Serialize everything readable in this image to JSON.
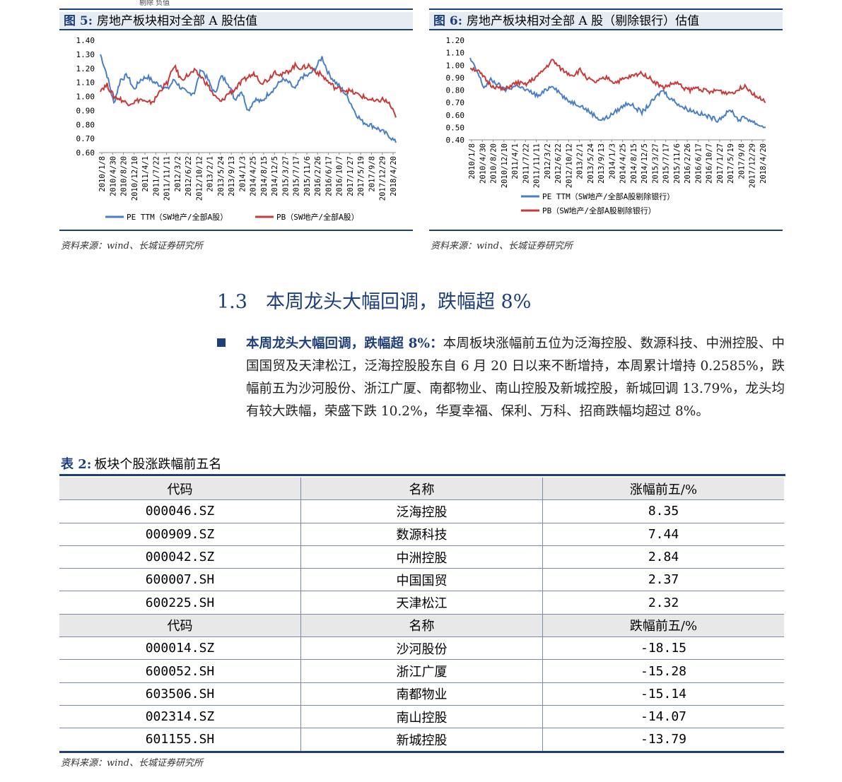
{
  "top_cut_text": "剔除 负值",
  "figures": [
    {
      "label": "图 5:",
      "title": "房地产板块相对全部 A 股估值",
      "source": "资料来源：wind、长城证券研究所",
      "chart_data": {
        "type": "line",
        "ylim": [
          0.6,
          1.4
        ],
        "yticks": [
          "1.40",
          "1.30",
          "1.20",
          "1.10",
          "1.00",
          "0.90",
          "0.80",
          "0.70",
          "0.60"
        ],
        "x_ticks": [
          "2010/1/8",
          "2010/4/30",
          "2010/8/20",
          "2010/12/10",
          "2011/4/1",
          "2011/7/22",
          "2011/11/11",
          "2012/3/2",
          "2012/6/22",
          "2012/10/12",
          "2013/2/1",
          "2013/5/24",
          "2013/9/13",
          "2014/1/3",
          "2014/4/25",
          "2014/8/15",
          "2014/12/5",
          "2015/3/27",
          "2015/7/17",
          "2015/11/6",
          "2016/2/26",
          "2016/6/17",
          "2016/10/7",
          "2017/1/27",
          "2017/5/19",
          "2017/9/8",
          "2017/12/29",
          "2018/4/20"
        ],
        "series": [
          {
            "name": "PE TTM（SW地产/全部A股）",
            "color": "#4a7fc8",
            "values": [
              1.3,
              1.15,
              0.95,
              1.12,
              1.15,
              1.05,
              1.12,
              1.14,
              1.1,
              1.08,
              1.05,
              1.12,
              1.06,
              1.02,
              1.03,
              1.2,
              1.12,
              1.02,
              1.14,
              1.1,
              0.98,
              1.04,
              0.9,
              0.98,
              0.96,
              1.02,
              1.06,
              1.12,
              1.1,
              1.05,
              1.14,
              1.15,
              1.2,
              1.28,
              1.16,
              1.1,
              1.05,
              0.98,
              0.88,
              0.82,
              0.8,
              0.78,
              0.75,
              0.72,
              0.67
            ]
          },
          {
            "name": "PB（SW地产/全部A股）",
            "color": "#c83a3a",
            "values": [
              1.05,
              1.08,
              1.0,
              0.98,
              0.95,
              0.96,
              0.98,
              0.95,
              0.97,
              1.05,
              1.1,
              1.22,
              1.12,
              1.15,
              1.18,
              1.14,
              1.08,
              1.0,
              0.96,
              1.02,
              1.05,
              1.1,
              1.14,
              1.16,
              1.1,
              1.12,
              1.18,
              1.15,
              1.18,
              1.22,
              1.2,
              1.22,
              1.18,
              1.15,
              1.1,
              1.06,
              1.05,
              1.04,
              1.02,
              1.0,
              0.98,
              0.96,
              0.98,
              0.95,
              0.85
            ]
          }
        ]
      }
    },
    {
      "label": "图 6:",
      "title": "房地产板块相对全部 A 股（剔除银行）估值",
      "source": "资料来源：wind、长城证券研究所",
      "chart_data": {
        "type": "line",
        "ylim": [
          0.4,
          1.2
        ],
        "yticks": [
          "1.20",
          "1.10",
          "1.00",
          "0.90",
          "0.80",
          "0.70",
          "0.60",
          "0.50",
          "0.40"
        ],
        "x_ticks": [
          "2010/1/8",
          "2010/4/30",
          "2010/8/20",
          "2010/12/10",
          "2011/4/1",
          "2011/7/22",
          "2011/11/11",
          "2012/3/2",
          "2012/6/22",
          "2012/10/12",
          "2013/2/1",
          "2013/5/24",
          "2013/9/13",
          "2014/1/3",
          "2014/4/25",
          "2014/8/15",
          "2014/12/5",
          "2015/3/27",
          "2015/7/17",
          "2015/11/6",
          "2016/2/26",
          "2016/6/17",
          "2016/10/7",
          "2017/1/27",
          "2017/5/19",
          "2017/9/8",
          "2017/12/29",
          "2018/4/20"
        ],
        "series": [
          {
            "name": "PE TTM（SW地产/全部A股剔除银行）",
            "color": "#4a7fc8",
            "values": [
              1.05,
              0.95,
              0.82,
              0.88,
              0.85,
              0.8,
              0.82,
              0.84,
              0.8,
              0.78,
              0.75,
              0.8,
              0.84,
              0.78,
              0.72,
              0.7,
              0.68,
              0.64,
              0.6,
              0.56,
              0.58,
              0.62,
              0.66,
              0.7,
              0.66,
              0.62,
              0.68,
              0.74,
              0.8,
              0.74,
              0.7,
              0.66,
              0.64,
              0.62,
              0.6,
              0.58,
              0.56,
              0.6,
              0.64,
              0.56,
              0.58,
              0.55,
              0.52,
              0.5
            ]
          },
          {
            "name": "PB（SW地产/全部A股剔除银行）",
            "color": "#c83a3a",
            "values": [
              0.98,
              0.96,
              0.9,
              0.84,
              0.82,
              0.8,
              0.84,
              0.86,
              0.84,
              0.88,
              0.92,
              0.98,
              1.04,
              0.98,
              0.94,
              0.92,
              0.96,
              0.9,
              0.86,
              0.88,
              0.9,
              0.86,
              0.88,
              0.9,
              0.92,
              0.94,
              0.9,
              0.86,
              0.82,
              0.84,
              0.86,
              0.82,
              0.8,
              0.82,
              0.8,
              0.78,
              0.8,
              0.78,
              0.78,
              0.8,
              0.84,
              0.78,
              0.74,
              0.7
            ]
          }
        ]
      }
    }
  ],
  "section": {
    "number": "1.3",
    "title": "本周龙头大幅回调，跌幅超 8%"
  },
  "paragraph": {
    "lead": "本周龙头大幅回调，跌幅超 8%：",
    "body": "本周板块涨幅前五位为泛海控股、数源科技、中洲控股、中国国贸及天津松江，泛海控股股东自 6 月 20 日以来不断增持，本周累计增持 0.2585%，跌幅前五为沙河股份、浙江广厦、南都物业、南山控股及新城控股，新城回调 13.79%，龙头均有较大跌幅，荣盛下跌 10.2%，华夏幸福、保利、万科、招商跌幅均超过 8%。"
  },
  "table": {
    "label": "表 2:",
    "title": "板块个股涨跌幅前五名",
    "source": "资料来源：wind、长城证券研究所",
    "gain_header": [
      "代码",
      "名称",
      "涨幅前五/%"
    ],
    "gain_rows": [
      [
        "000046.SZ",
        "泛海控股",
        "8.35"
      ],
      [
        "000909.SZ",
        "数源科技",
        "7.44"
      ],
      [
        "000042.SZ",
        "中洲控股",
        "2.84"
      ],
      [
        "600007.SH",
        "中国国贸",
        "2.37"
      ],
      [
        "600225.SH",
        "天津松江",
        "2.32"
      ]
    ],
    "loss_header": [
      "代码",
      "名称",
      "跌幅前五/%"
    ],
    "loss_rows": [
      [
        "000014.SZ",
        "沙河股份",
        "-18.15"
      ],
      [
        "600052.SH",
        "浙江广厦",
        "-15.28"
      ],
      [
        "603506.SH",
        "南都物业",
        "-15.14"
      ],
      [
        "002314.SZ",
        "南山控股",
        "-14.07"
      ],
      [
        "601155.SH",
        "新城控股",
        "-13.79"
      ]
    ]
  }
}
